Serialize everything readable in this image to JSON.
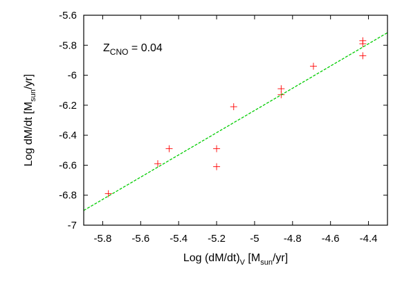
{
  "chart_data": {
    "type": "scatter",
    "title": "",
    "annotation": {
      "main": "Z",
      "sub": "CNO",
      "rest": " = 0.04"
    },
    "xlabel": {
      "pre": "Log (dM/dt)",
      "sub1": "V",
      "mid": " [M",
      "sub2": "sun",
      "post": "/yr]"
    },
    "ylabel": {
      "pre": "Log dM/dt [M",
      "sub": "sun",
      "post": "/yr]"
    },
    "xlim": [
      -5.9,
      -4.3
    ],
    "ylim": [
      -7.0,
      -5.6
    ],
    "xticks": [
      -5.8,
      -5.6,
      -5.4,
      -5.2,
      -5.0,
      -4.8,
      -4.6,
      -4.4
    ],
    "xtick_labels": [
      "-5.8",
      "-5.6",
      "-5.4",
      "-5.2",
      "-5",
      "-4.8",
      "-4.6",
      "-4.4"
    ],
    "yticks": [
      -7.0,
      -6.8,
      -6.6,
      -6.4,
      -6.2,
      -6.0,
      -5.8,
      -5.6
    ],
    "ytick_labels": [
      "-7",
      "-6.8",
      "-6.6",
      "-6.4",
      "-6.2",
      "-6",
      "-5.8",
      "-5.6"
    ],
    "grid": false,
    "series": [
      {
        "marker": "plus",
        "color": "#ff0000",
        "points": [
          {
            "x": -5.77,
            "y": -6.79
          },
          {
            "x": -5.51,
            "y": -6.59
          },
          {
            "x": -5.45,
            "y": -6.49
          },
          {
            "x": -5.2,
            "y": -6.49
          },
          {
            "x": -5.2,
            "y": -6.61
          },
          {
            "x": -5.11,
            "y": -6.21
          },
          {
            "x": -4.86,
            "y": -6.09
          },
          {
            "x": -4.86,
            "y": -6.13
          },
          {
            "x": -4.69,
            "y": -5.94
          },
          {
            "x": -4.43,
            "y": -5.77
          },
          {
            "x": -4.43,
            "y": -5.79
          },
          {
            "x": -4.43,
            "y": -5.87
          }
        ]
      },
      {
        "type": "line",
        "style": "dashed",
        "color": "#00cc00",
        "fit": {
          "slope": 0.741,
          "intercept": -2.53
        }
      }
    ]
  }
}
